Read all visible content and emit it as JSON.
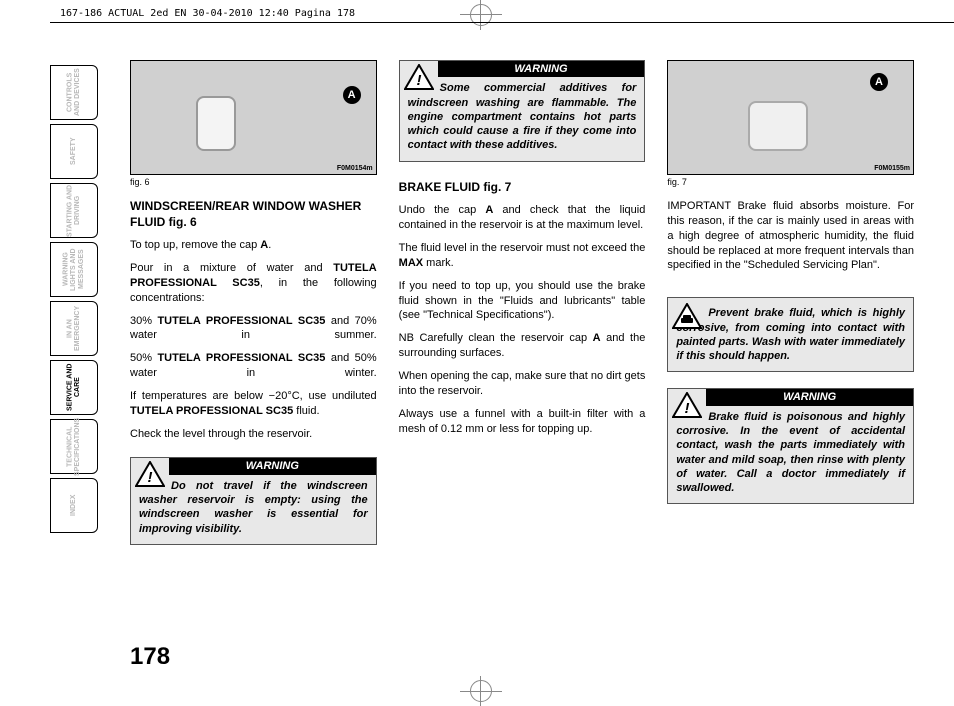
{
  "meta": {
    "top_mark": "167-186 ACTUAL 2ed EN  30-04-2010  12:40  Pagina 178",
    "page_number": "178"
  },
  "tabs": [
    "CONTROLS AND DEVICES",
    "SAFETY",
    "STARTING AND DRIVING",
    "WARNING LIGHTS AND MESSAGES",
    "IN AN EMERGENCY",
    "SERVICE AND CARE",
    "TECHNICAL SPECIFICATIONS",
    "INDEX"
  ],
  "active_tab_index": 5,
  "col1": {
    "fig_badge": "A",
    "fig_code": "F0M0154m",
    "fig_caption": "fig. 6",
    "heading": "WINDSCREEN/REAR WINDOW WASHER FLUID fig. 6",
    "p1_a": "To top up, remove the cap ",
    "p1_b": "A",
    "p1_c": ".",
    "p2_a": "Pour in a mixture of water and ",
    "p2_b": "TUTELA PROFESSIONAL SC35",
    "p2_c": ", in the following concentrations:",
    "p3_a": "30% ",
    "p3_b": "TUTELA PROFESSIONAL SC35",
    "p3_c": " and 70% water in summer.",
    "p4_a": "50% ",
    "p4_b": "TUTELA PROFESSIONAL SC35",
    "p4_c": " and 50% water in winter.",
    "p5_a": "If temperatures are below −20°C, use undiluted ",
    "p5_b": "TUTELA PROFESSIONAL SC35",
    "p5_c": " fluid.",
    "p6": "Check the level through the reservoir.",
    "warn_label": "WARNING",
    "warn_text": "Do not travel if the windscreen washer reservoir is empty: using the windscreen washer is essential for improving visibility."
  },
  "col2": {
    "warn_label": "WARNING",
    "warn_top_text": "Some commercial additives for windscreen washing are flammable. The engine compartment contains hot parts which could cause a fire if they come into contact with these additives.",
    "heading": "BRAKE FLUID fig. 7",
    "p1_a": "Undo the cap ",
    "p1_b": "A",
    "p1_c": " and check that the liquid contained in the reservoir is at the maximum level.",
    "p2_a": "The fluid level in the reservoir must not exceed the ",
    "p2_b": "MAX",
    "p2_c": " mark.",
    "p3": "If you need to top up, you should use the brake fluid shown in the \"Fluids and lubricants\" table (see \"Technical Specifications\").",
    "p4_a": "NB Carefully clean the reservoir cap ",
    "p4_b": "A",
    "p4_c": " and the surrounding surfaces.",
    "p5": "When opening the cap, make sure that no dirt gets into the reservoir.",
    "p6": "Always use a funnel with a built-in filter with a mesh of 0.12 mm or less for topping up."
  },
  "col3": {
    "fig_badge": "A",
    "fig_code": "F0M0155m",
    "fig_caption": "fig. 7",
    "p1": "IMPORTANT Brake fluid absorbs moisture. For this reason, if the car is mainly used in areas with a high degree of atmospheric humidity, the fluid should be replaced at more frequent intervals than specified in the \"Scheduled Servicing Plan\".",
    "caution_text": "Prevent brake fluid, which is highly corrosive, from coming into contact with painted parts. Wash with water immediately if this should happen.",
    "warn_label": "WARNING",
    "warn_text": "Brake fluid is poisonous and highly corrosive. In the event of accidental contact, wash the parts immediately with water and mild soap, then rinse with plenty of water. Call a doctor immediately if swallowed."
  }
}
